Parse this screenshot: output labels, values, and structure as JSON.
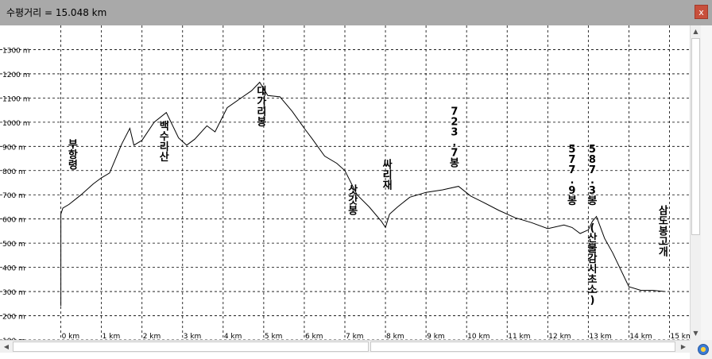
{
  "window": {
    "title": "수평거리 = 15.048 km",
    "close_label": "x"
  },
  "chart_data": {
    "type": "line",
    "title": "",
    "xlabel": "",
    "ylabel": "",
    "x_unit": "km",
    "y_unit": "m",
    "xlim": [
      -1.5,
      15.5
    ],
    "ylim": [
      100,
      1400
    ],
    "x_ticks": [
      0,
      1,
      2,
      3,
      4,
      5,
      6,
      7,
      8,
      9,
      10,
      11,
      12,
      13,
      14,
      15
    ],
    "x_tick_labels": [
      "0 km",
      "1 km",
      "2 km",
      "3 km",
      "4 km",
      "5 km",
      "6 km",
      "7 km",
      "8 km",
      "9 km",
      "10 km",
      "11 km",
      "12 km",
      "13 km",
      "14 km",
      "15 km"
    ],
    "y_ticks": [
      100,
      200,
      300,
      400,
      500,
      600,
      700,
      800,
      900,
      1000,
      1100,
      1200,
      1300
    ],
    "y_tick_labels": [
      "100 m",
      "200 m",
      "300 m",
      "400 m",
      "500 m",
      "600 m",
      "700 m",
      "800 m",
      "900 m",
      "1000 m",
      "1100 m",
      "1200 m",
      "1300 m"
    ],
    "grid": true,
    "line_color": "#000000",
    "series": [
      {
        "name": "",
        "x": [
          0,
          0,
          0.05,
          0.2,
          0.5,
          0.8,
          1.0,
          1.2,
          1.5,
          1.7,
          1.8,
          2.0,
          2.3,
          2.6,
          2.9,
          3.1,
          3.3,
          3.6,
          3.8,
          4.1,
          4.4,
          4.7,
          4.9,
          5.1,
          5.4,
          5.7,
          6.0,
          6.2,
          6.5,
          6.8,
          7.0,
          7.3,
          7.6,
          7.9,
          8.0,
          8.1,
          8.3,
          8.6,
          9.0,
          9.4,
          9.8,
          10.1,
          10.4,
          10.8,
          11.2,
          11.6,
          12.0,
          12.4,
          12.6,
          12.8,
          13.0,
          13.1,
          13.2,
          13.4,
          13.6,
          13.8,
          14.0,
          14.3,
          14.6,
          14.9
        ],
        "y": [
          240,
          620,
          645,
          660,
          700,
          745,
          770,
          790,
          910,
          975,
          905,
          925,
          1000,
          1040,
          935,
          905,
          930,
          985,
          960,
          1060,
          1095,
          1130,
          1165,
          1110,
          1105,
          1045,
          975,
          930,
          860,
          830,
          800,
          700,
          650,
          590,
          565,
          620,
          650,
          690,
          710,
          720,
          735,
          695,
          670,
          635,
          605,
          585,
          560,
          575,
          565,
          540,
          555,
          590,
          610,
          520,
          460,
          390,
          320,
          305,
          305,
          300
        ]
      }
    ],
    "annotations": [
      {
        "text": "부항령",
        "x": 0.3,
        "y": 895,
        "vertical": true
      },
      {
        "text": "백수리산",
        "x": 2.55,
        "y": 970,
        "vertical": true
      },
      {
        "text": "대가리봉",
        "x": 4.95,
        "y": 1115,
        "vertical": true
      },
      {
        "text": "삿갓봉",
        "x": 7.2,
        "y": 705,
        "vertical": true
      },
      {
        "text": "싸리재",
        "x": 8.05,
        "y": 810,
        "vertical": true
      },
      {
        "text": "723.7봉",
        "x": 9.7,
        "y": 1030,
        "vertical": true
      },
      {
        "text": "577.9봉",
        "x": 12.6,
        "y": 875,
        "vertical": true
      },
      {
        "text": "587.3봉",
        "x": 13.1,
        "y": 875,
        "vertical": true
      },
      {
        "text": "(산불감시초소)",
        "x": 13.1,
        "y": 550,
        "vertical": true
      },
      {
        "text": "삼도봉고개",
        "x": 14.85,
        "y": 620,
        "vertical": true
      }
    ]
  }
}
